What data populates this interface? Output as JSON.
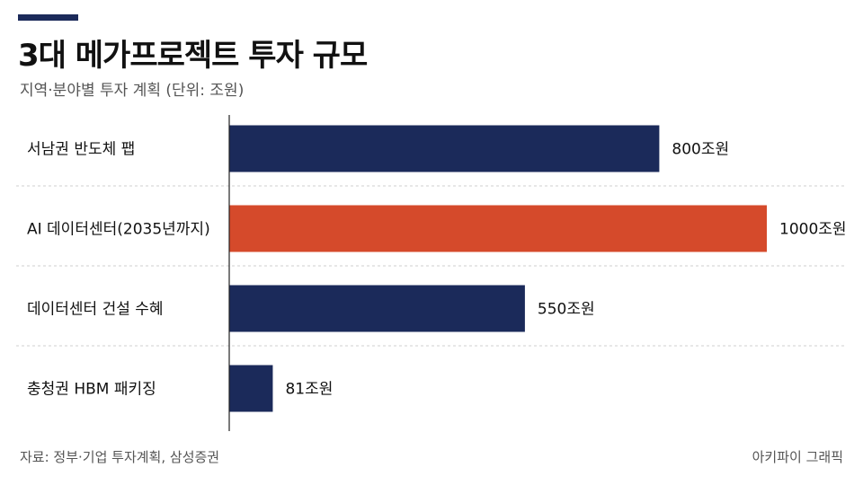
{
  "header": {
    "title": "3대 메가프로젝트 투자 규모",
    "subtitle": "지역·분야별 투자 계획 (단위: 조원)"
  },
  "footer": {
    "source": "자료: 정부·기업 투자계획, 삼성증권",
    "credit": "아키파이 그래픽"
  },
  "colors": {
    "primary": "#1b2a5a",
    "highlight": "#d54a2b",
    "accent_bar": "#1b2a5a"
  },
  "chart_data": {
    "type": "bar",
    "orientation": "horizontal",
    "categories": [
      "서남권 반도체 팹",
      "AI 데이터센터(2035년까지)",
      "데이터센터 건설 수혜",
      "충청권 HBM 패키징"
    ],
    "values": [
      800,
      1000,
      550,
      81
    ],
    "value_labels": [
      "800조원",
      "1000조원",
      "550조원",
      "81조원"
    ],
    "highlight_index": 1,
    "xlim": [
      0,
      1000
    ],
    "grid": false
  }
}
